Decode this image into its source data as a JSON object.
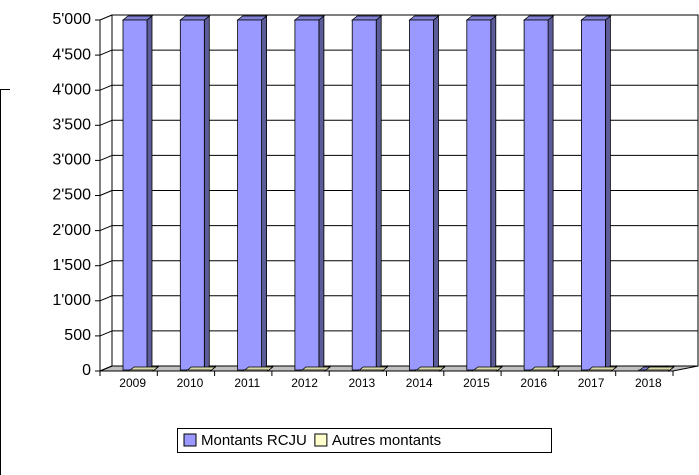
{
  "chart_data": {
    "type": "bar3d",
    "categories": [
      "2009",
      "2010",
      "2011",
      "2012",
      "2013",
      "2014",
      "2015",
      "2016",
      "2017",
      "2018"
    ],
    "series": [
      {
        "name": "Montants RCJU",
        "color": "#9999ff",
        "values": [
          5000,
          5000,
          5000,
          5000,
          5000,
          5000,
          5000,
          5000,
          5000,
          0
        ]
      },
      {
        "name": "Autres montants",
        "color": "#ffffcc",
        "values": [
          0,
          0,
          0,
          0,
          0,
          0,
          0,
          0,
          0,
          0
        ]
      }
    ],
    "ylim": [
      0,
      5000
    ],
    "yticks": [
      0,
      500,
      {
        "value": 1000,
        "label": "1'000"
      },
      {
        "value": 1500,
        "label": "1'500"
      },
      {
        "value": 2000,
        "label": "2'000"
      },
      {
        "value": 2500,
        "label": "2'500"
      },
      {
        "value": 3000,
        "label": "3'000"
      },
      {
        "value": 3500,
        "label": "3'500"
      },
      {
        "value": 4000,
        "label": "4'000"
      },
      {
        "value": 4500,
        "label": "4'500"
      },
      {
        "value": 5000,
        "label": "5'000"
      }
    ],
    "grid": true
  }
}
